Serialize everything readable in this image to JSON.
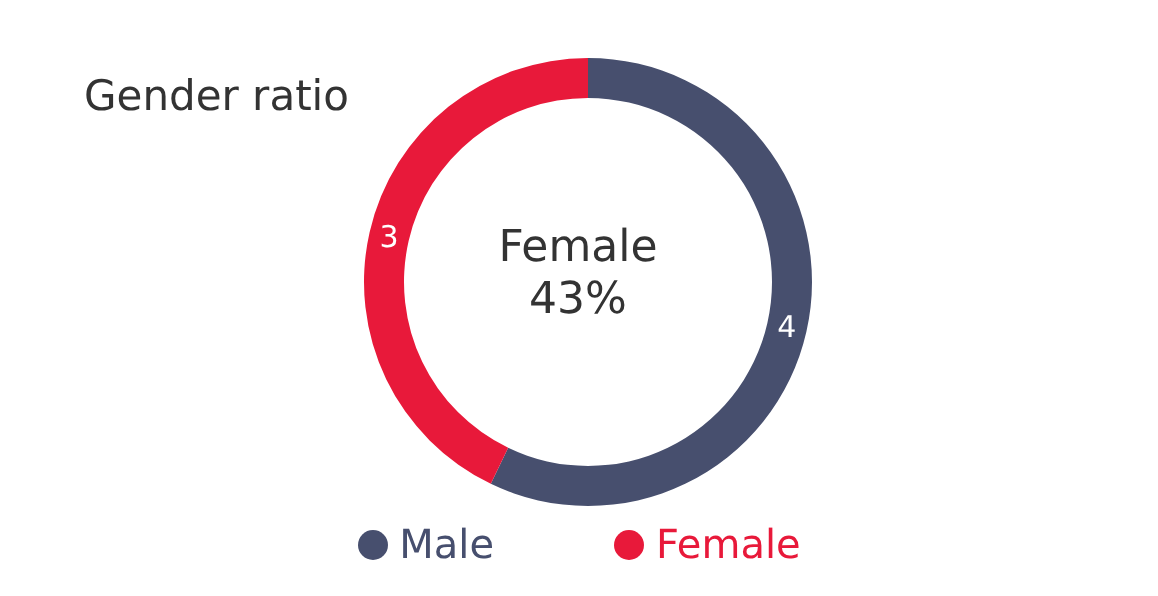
{
  "chart_data": {
    "type": "donut",
    "title": "Gender ratio",
    "categories": [
      "Male",
      "Female"
    ],
    "values": [
      4,
      3
    ],
    "colors": [
      "#474f6e",
      "#e8193a"
    ],
    "data_labels": true,
    "legend": "bottom",
    "annotations": [
      "Female",
      "43%"
    ]
  }
}
